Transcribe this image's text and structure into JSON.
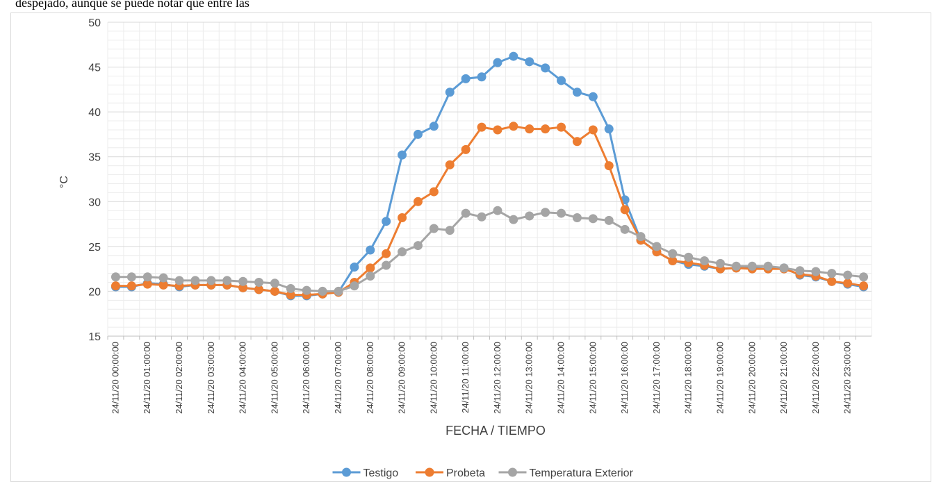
{
  "document_text": "despejado, aunque se puede notar que entre las",
  "chart_data": {
    "type": "line",
    "y_label": "°C",
    "x_label": "FECHA / TIEMPO",
    "categories": [
      "24/11/20 00:00:00",
      null,
      "24/11/20 01:00:00",
      null,
      "24/11/20 02:00:00",
      null,
      "24/11/20 03:00:00",
      null,
      "24/11/20 04:00:00",
      null,
      "24/11/20 05:00:00",
      null,
      "24/11/20 06:00:00",
      null,
      "24/11/20 07:00:00",
      null,
      "24/11/20 08:00:00",
      null,
      "24/11/20 09:00:00",
      null,
      "24/11/20 10:00:00",
      null,
      "24/11/20 11:00:00",
      null,
      "24/11/20 12:00:00",
      null,
      "24/11/20 13:00:00",
      null,
      "24/11/20 14:00:00",
      null,
      "24/11/20 15:00:00",
      null,
      "24/11/20 16:00:00",
      null,
      "24/11/20 17:00:00",
      null,
      "24/11/20 18:00:00",
      null,
      "24/11/20 19:00:00",
      null,
      "24/11/20 20:00:00",
      null,
      "24/11/20 21:00:00",
      null,
      "24/11/20 22:00:00",
      null,
      "24/11/20 23:00:00",
      null
    ],
    "series": [
      {
        "name": "Testigo",
        "color": "#5b9bd5",
        "values": [
          20.5,
          20.5,
          20.9,
          20.8,
          20.5,
          20.7,
          20.7,
          20.7,
          20.4,
          20.2,
          20.0,
          19.5,
          19.5,
          19.7,
          19.9,
          22.7,
          24.6,
          27.8,
          35.2,
          37.5,
          38.4,
          42.2,
          43.7,
          43.9,
          45.5,
          46.2,
          45.6,
          44.9,
          43.5,
          42.2,
          41.7,
          38.1,
          30.2,
          25.7,
          24.4,
          23.4,
          23.0,
          22.8,
          22.5,
          22.6,
          22.6,
          22.5,
          22.6,
          21.8,
          21.6,
          21.1,
          20.8,
          20.5
        ]
      },
      {
        "name": "Probeta",
        "color": "#ed7d31",
        "values": [
          20.6,
          20.6,
          20.8,
          20.7,
          20.6,
          20.7,
          20.7,
          20.7,
          20.4,
          20.2,
          20.0,
          19.6,
          19.6,
          19.7,
          19.9,
          21.0,
          22.6,
          24.2,
          28.2,
          30.0,
          31.1,
          34.1,
          35.8,
          38.3,
          38.0,
          38.4,
          38.1,
          38.1,
          38.3,
          36.7,
          38.0,
          34.0,
          29.1,
          25.7,
          24.4,
          23.4,
          23.2,
          22.9,
          22.5,
          22.6,
          22.5,
          22.5,
          22.5,
          21.9,
          21.7,
          21.1,
          20.9,
          20.6
        ]
      },
      {
        "name": "Temperatura Exterior",
        "color": "#a5a5a5",
        "values": [
          21.6,
          21.6,
          21.6,
          21.5,
          21.2,
          21.2,
          21.2,
          21.2,
          21.1,
          21.0,
          20.9,
          20.3,
          20.1,
          20.0,
          20.0,
          20.6,
          21.7,
          22.9,
          24.4,
          25.1,
          27.0,
          26.8,
          28.7,
          28.3,
          29.0,
          28.0,
          28.4,
          28.8,
          28.7,
          28.2,
          28.1,
          27.9,
          26.9,
          26.1,
          25.0,
          24.2,
          23.8,
          23.4,
          23.1,
          22.8,
          22.8,
          22.8,
          22.6,
          22.3,
          22.2,
          22.0,
          21.8,
          21.6
        ]
      }
    ],
    "ylim": [
      15,
      50
    ],
    "yticks": [
      15,
      20,
      25,
      30,
      35,
      40,
      45,
      50
    ],
    "grid": true,
    "minor_grid": true,
    "legend": "bottom"
  }
}
